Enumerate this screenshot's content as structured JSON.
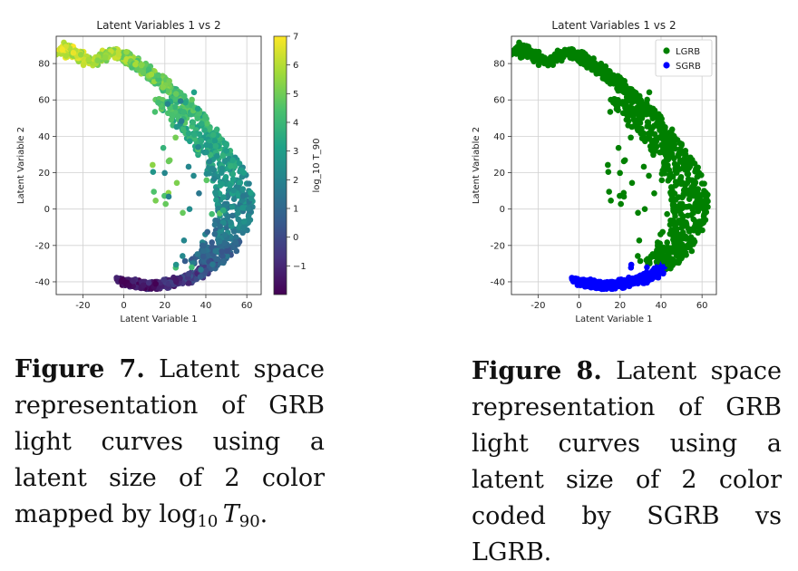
{
  "chart_data": [
    {
      "type": "scatter",
      "title": "Latent Variables 1 vs 2",
      "xlabel": "Latent Variable 1",
      "ylabel": "Latent Variable 2",
      "xlim": [
        -33,
        67
      ],
      "ylim": [
        -47,
        95
      ],
      "xticks": [
        -20,
        0,
        20,
        40,
        60
      ],
      "yticks": [
        -40,
        -20,
        0,
        20,
        40,
        60,
        80
      ],
      "grid": true,
      "colorbar": {
        "label": "log_10 T_90",
        "range": [
          -2,
          7
        ],
        "ticks": [
          -1,
          0,
          1,
          2,
          3,
          4,
          5,
          6,
          7
        ],
        "colormap": [
          "#440154",
          "#46327e",
          "#365c8d",
          "#277f8e",
          "#1fa187",
          "#4ac16d",
          "#a0da39",
          "#fde725"
        ]
      },
      "points_description_values": {
        "x": [
          -28,
          -27,
          -22,
          -20,
          -15,
          -8,
          -5,
          -3,
          0,
          2,
          5,
          8,
          10,
          12,
          15,
          18,
          20,
          22,
          25,
          28,
          30,
          33,
          35,
          38,
          40,
          42,
          45,
          48,
          50,
          52,
          55,
          57,
          58,
          60,
          61,
          62,
          62,
          61,
          60,
          58,
          56,
          54,
          52,
          50,
          48,
          45,
          42,
          40,
          37,
          34,
          30,
          27,
          24,
          20,
          17,
          14,
          11,
          8,
          5,
          3,
          1
        ],
        "y": [
          84,
          90,
          85,
          86,
          80,
          84,
          86,
          86,
          84,
          85,
          82,
          80,
          79,
          77,
          75,
          72,
          70,
          68,
          66,
          63,
          60,
          58,
          55,
          52,
          49,
          45,
          42,
          38,
          35,
          30,
          26,
          22,
          18,
          14,
          10,
          6,
          2,
          -3,
          -8,
          -13,
          -17,
          -21,
          -24,
          -27,
          -29,
          -31,
          -33,
          -35,
          -37,
          -38,
          -39,
          -40,
          -41,
          -42,
          -42,
          -42,
          -42,
          -41,
          -41,
          -40,
          -39
        ],
        "c": [
          6.5,
          6.4,
          6.2,
          6.0,
          5.8,
          5.7,
          5.6,
          5.5,
          5.6,
          5.4,
          5.3,
          5.2,
          5.1,
          5.0,
          4.9,
          4.8,
          4.7,
          4.6,
          4.5,
          4.4,
          4.3,
          4.2,
          4.1,
          4.0,
          3.9,
          3.8,
          3.6,
          3.5,
          3.4,
          3.2,
          3.0,
          2.9,
          2.8,
          2.6,
          2.4,
          2.3,
          2.2,
          2.0,
          1.8,
          1.6,
          1.4,
          1.2,
          1.0,
          0.8,
          0.6,
          0.4,
          0.2,
          0.0,
          -0.2,
          -0.4,
          -0.6,
          -0.8,
          -1.0,
          -1.1,
          -1.2,
          -1.3,
          -1.4,
          -1.4,
          -1.5,
          -1.5,
          -1.5
        ]
      }
    },
    {
      "type": "scatter",
      "title": "Latent Variables 1 vs 2",
      "xlabel": "Latent Variable 1",
      "ylabel": "Latent Variable 2",
      "xlim": [
        -33,
        67
      ],
      "ylim": [
        -47,
        95
      ],
      "xticks": [
        -20,
        0,
        20,
        40,
        60
      ],
      "yticks": [
        -40,
        -20,
        0,
        20,
        40,
        60,
        80
      ],
      "grid": true,
      "legend": {
        "placement": "top-right",
        "entries": [
          "LGRB",
          "SGRB"
        ]
      },
      "series": [
        {
          "name": "LGRB",
          "color": "#008000"
        },
        {
          "name": "SGRB",
          "color": "#0000ff"
        }
      ]
    }
  ],
  "captions": {
    "fig7_label": "Figure 7.",
    "fig7_text": "Latent space representation of GRB light curves using a latent size of 2 color mapped by",
    "fig7_log": "log",
    "fig7_sub": "10",
    "fig7_var": "T",
    "fig7_var_sub": "90",
    "fig8_label": "Figure 8.",
    "fig8_text": "Latent space representation of GRB light curves using a latent size of 2 color coded by SGRB vs LGRB."
  }
}
